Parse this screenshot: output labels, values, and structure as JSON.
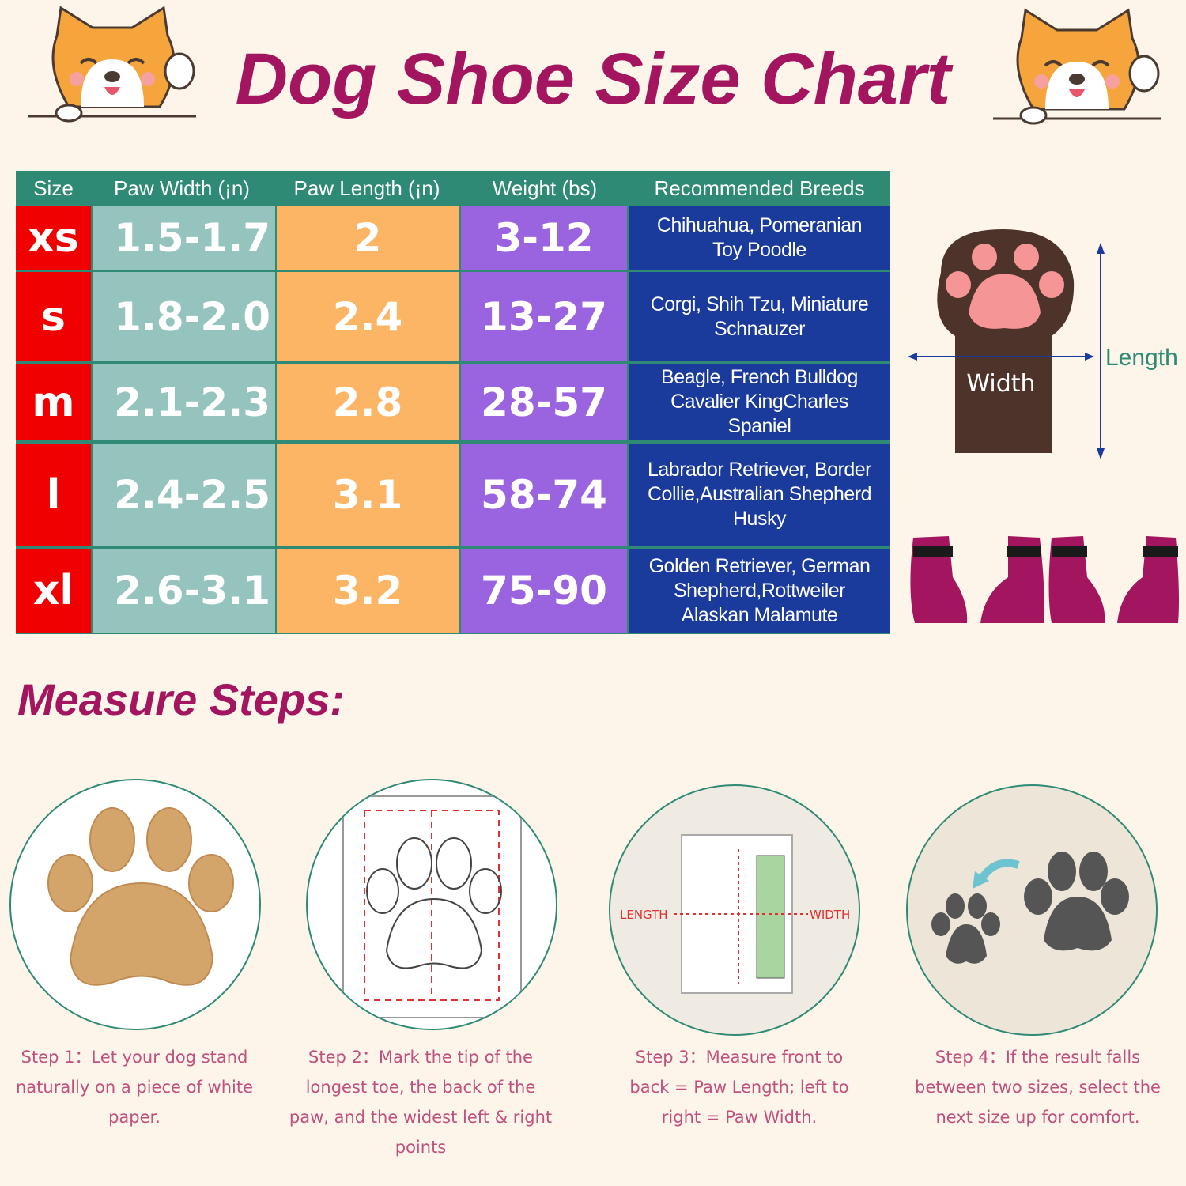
{
  "title": "Dog Shoe Size Chart",
  "table": {
    "headers": [
      "Size",
      "Paw Width (¡n)",
      "Paw Length (¡n)",
      "Weight (bs)",
      "Recommended Breeds"
    ],
    "rows": [
      {
        "size": "xs",
        "width": "1.5-1.7",
        "length": "2",
        "weight": "3-12",
        "breeds": "Chihuahua, Pomeranian\nToy Poodle"
      },
      {
        "size": "s",
        "width": "1.8-2.0",
        "length": "2.4",
        "weight": "13-27",
        "breeds": "Corgi, Shih Tzu, Miniature\nSchnauzer"
      },
      {
        "size": "m",
        "width": "2.1-2.3",
        "length": "2.8",
        "weight": "28-57",
        "breeds": "Beagle, French Bulldog\nCavalier KingCharles\nSpaniel"
      },
      {
        "size": "l",
        "width": "2.4-2.5",
        "length": "3.1",
        "weight": "58-74",
        "breeds": "Labrador Retriever, Border\nCollie,Australian Shepherd\nHusky"
      },
      {
        "size": "xl",
        "width": "2.6-3.1",
        "length": "3.2",
        "weight": "75-90",
        "breeds": "Golden Retriever, German\nShepherd,Rottweiler\nAlaskan Malamute"
      }
    ],
    "colors": {
      "header": "#2e8a74",
      "size": "#f00000",
      "width": "#94c4bd",
      "length": "#fbb565",
      "weight": "#9a63e0",
      "breeds": "#1a3a9c"
    }
  },
  "diagram": {
    "width_label": "Width",
    "length_label": "Length"
  },
  "steps_title": "Measure Steps:",
  "steps": [
    {
      "caption": "Step 1：Let your dog stand naturally on a piece of white paper."
    },
    {
      "caption": "Step 2：Mark the tip of the longest toe, the back of the paw, and the widest left & right points"
    },
    {
      "caption": "Step 3：Measure front to back = Paw Length; left to right = Paw Width.",
      "length_label": "LENGTH",
      "width_label": "WIDTH"
    },
    {
      "caption": "Step 4：If the result falls between two sizes, select the next size up for comfort."
    }
  ]
}
